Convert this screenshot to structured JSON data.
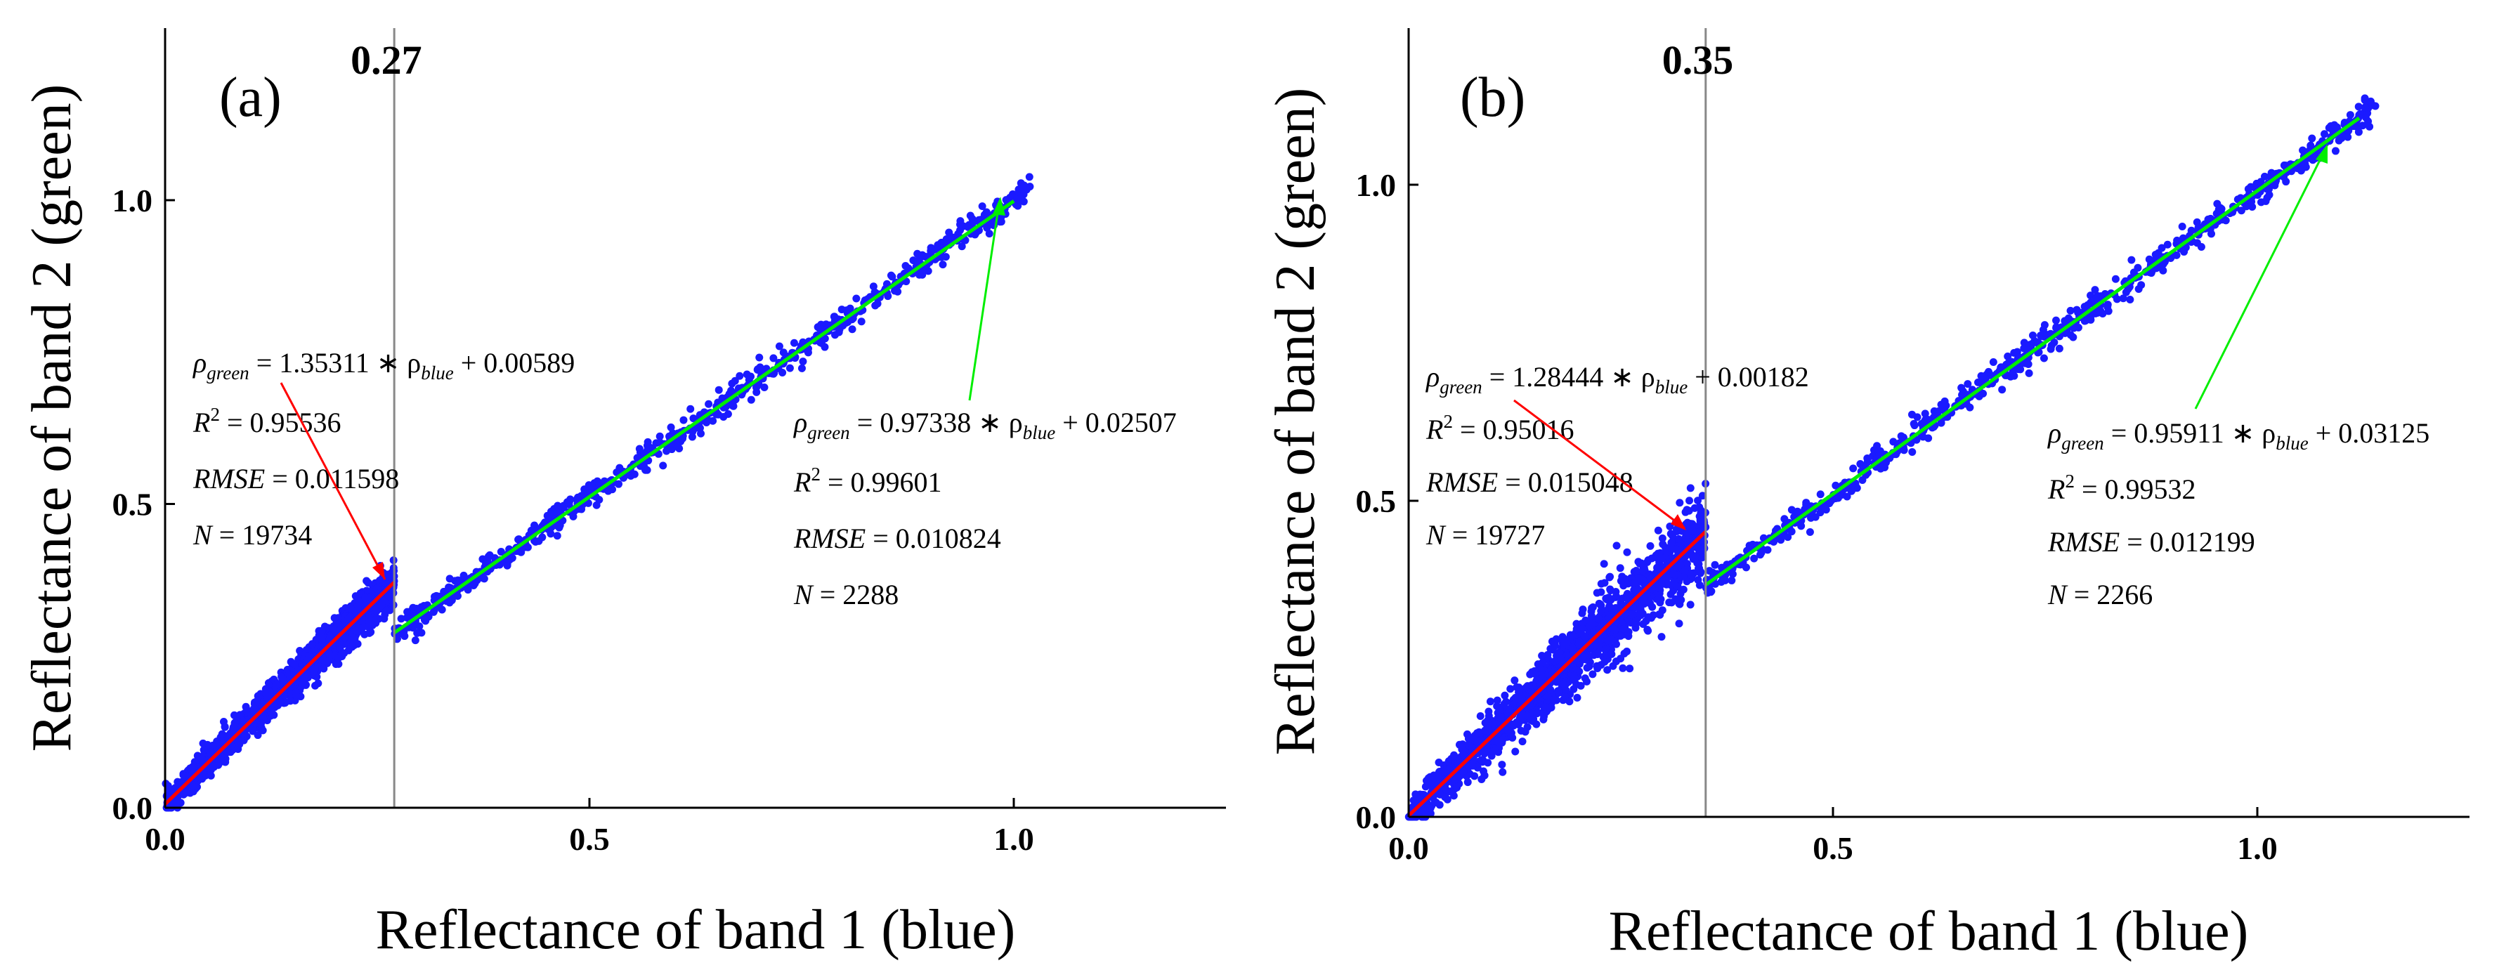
{
  "chart_data": [
    {
      "type": "scatter",
      "panel_label": "(a)",
      "threshold": 0.27,
      "threshold_label": "0.27",
      "xlabel": "Reflectance of band 1 (blue)",
      "ylabel": "Reflectance of band 2 (green)",
      "xlim": [
        0,
        1.25
      ],
      "ylim": [
        0,
        1.25
      ],
      "x_ticks": [
        0.0,
        0.5,
        1.0
      ],
      "y_ticks": [
        0.0,
        0.5,
        1.0
      ],
      "x_tick_labels": [
        "0.0",
        "0.5",
        "1.0"
      ],
      "y_tick_labels": [
        "0.0",
        "0.5",
        "1.0"
      ],
      "point_color": "#1a1aff",
      "fits": [
        {
          "segment": "low",
          "color": "#ff0000",
          "slope": 1.35311,
          "intercept": 0.00589,
          "x_range": [
            0.0,
            0.27
          ],
          "eq_lhs": "ρ",
          "eq_lhs_sub": "green",
          "eq_mid": " = 1.35311 ∗ ρ",
          "eq_mid_sub": "blue",
          "eq_rhs": " + 0.00589",
          "r2_prefix": "R",
          "r2_sup": "2",
          "r2_value": " = 0.95536",
          "rmse_label": "RMSE",
          "rmse_value": " = 0.011598",
          "n_label": "N",
          "n_value": " = 19734"
        },
        {
          "segment": "high",
          "color": "#00ee00",
          "slope": 0.97338,
          "intercept": 0.02507,
          "x_range": [
            0.27,
            1.0
          ],
          "eq_lhs": "ρ",
          "eq_lhs_sub": "green",
          "eq_mid": " = 0.97338 ∗ ρ",
          "eq_mid_sub": "blue",
          "eq_rhs": " + 0.02507",
          "r2_prefix": "R",
          "r2_sup": "2",
          "r2_value": " = 0.99601",
          "rmse_label": "RMSE",
          "rmse_value": " = 0.010824",
          "n_label": "N",
          "n_value": " = 2288"
        }
      ]
    },
    {
      "type": "scatter",
      "panel_label": "(b)",
      "threshold": 0.35,
      "threshold_label": "0.35",
      "xlabel": "Reflectance of band 1 (blue)",
      "ylabel": "Reflectance of band 2 (green)",
      "xlim": [
        0,
        1.25
      ],
      "ylim": [
        0,
        1.25
      ],
      "x_ticks": [
        0.0,
        0.5,
        1.0
      ],
      "y_ticks": [
        0.0,
        0.5,
        1.0
      ],
      "x_tick_labels": [
        "0.0",
        "0.5",
        "1.0"
      ],
      "y_tick_labels": [
        "0.0",
        "0.5",
        "1.0"
      ],
      "point_color": "#1a1aff",
      "fits": [
        {
          "segment": "low",
          "color": "#ff0000",
          "slope": 1.28444,
          "intercept": 0.00182,
          "x_range": [
            0.0,
            0.35
          ],
          "eq_lhs": "ρ",
          "eq_lhs_sub": "green",
          "eq_mid": " = 1.28444 ∗ ρ",
          "eq_mid_sub": "blue",
          "eq_rhs": " + 0.00182",
          "r2_prefix": "R",
          "r2_sup": "2",
          "r2_value": " = 0.95016",
          "rmse_label": "RMSE",
          "rmse_value": " = 0.015048",
          "n_label": "N",
          "n_value": " = 19727"
        },
        {
          "segment": "high",
          "color": "#00ee00",
          "slope": 0.95911,
          "intercept": 0.03125,
          "x_range": [
            0.35,
            1.12
          ],
          "eq_lhs": "ρ",
          "eq_lhs_sub": "green",
          "eq_mid": " = 0.95911 ∗ ρ",
          "eq_mid_sub": "blue",
          "eq_rhs": " + 0.03125",
          "r2_prefix": "R",
          "r2_sup": "2",
          "r2_value": " = 0.99532",
          "rmse_label": "RMSE",
          "rmse_value": " = 0.012199",
          "n_label": "N",
          "n_value": " = 2266"
        }
      ]
    }
  ]
}
